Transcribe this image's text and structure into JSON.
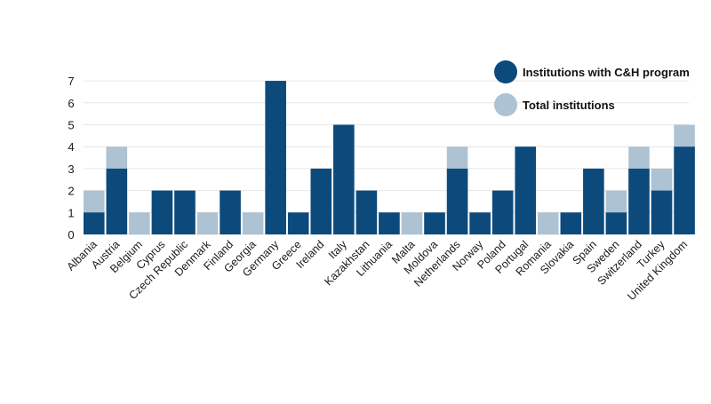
{
  "colors": {
    "with_program": "#0c4a7c",
    "total": "#adc2d3",
    "grid": "#e6e6e6",
    "text": "#1a1a1a"
  },
  "chart_data": {
    "type": "bar",
    "stacked": "overlay",
    "categories": [
      "Albania",
      "Austria",
      "Belgium",
      "Cyprus",
      "Czech Republic",
      "Denmark",
      "Finland",
      "Georgia",
      "Germany",
      "Greece",
      "Ireland",
      "Italy",
      "Kazakhstan",
      "Lithuania",
      "Malta",
      "Moldova",
      "Netherlands",
      "Norway",
      "Poland",
      "Portugal",
      "Romania",
      "Slovakia",
      "Spain",
      "Sweden",
      "Switzerland",
      "Turkey",
      "United Kingdom"
    ],
    "series": [
      {
        "name": "Institutions with C&H program",
        "values": [
          1,
          3,
          0,
          2,
          2,
          0,
          2,
          0,
          7,
          1,
          3,
          5,
          2,
          1,
          0,
          1,
          3,
          1,
          2,
          4,
          0,
          1,
          3,
          1,
          3,
          2,
          4
        ]
      },
      {
        "name": "Total institutions",
        "values": [
          2,
          4,
          1,
          2,
          2,
          1,
          2,
          1,
          7,
          1,
          3,
          5,
          2,
          1,
          1,
          1,
          4,
          1,
          2,
          4,
          1,
          1,
          3,
          2,
          4,
          3,
          5
        ]
      }
    ],
    "yticks": [
      0,
      1,
      2,
      3,
      4,
      5,
      6,
      7
    ],
    "ylim": [
      0,
      7
    ],
    "grid": true,
    "legend_position": "top-right"
  }
}
